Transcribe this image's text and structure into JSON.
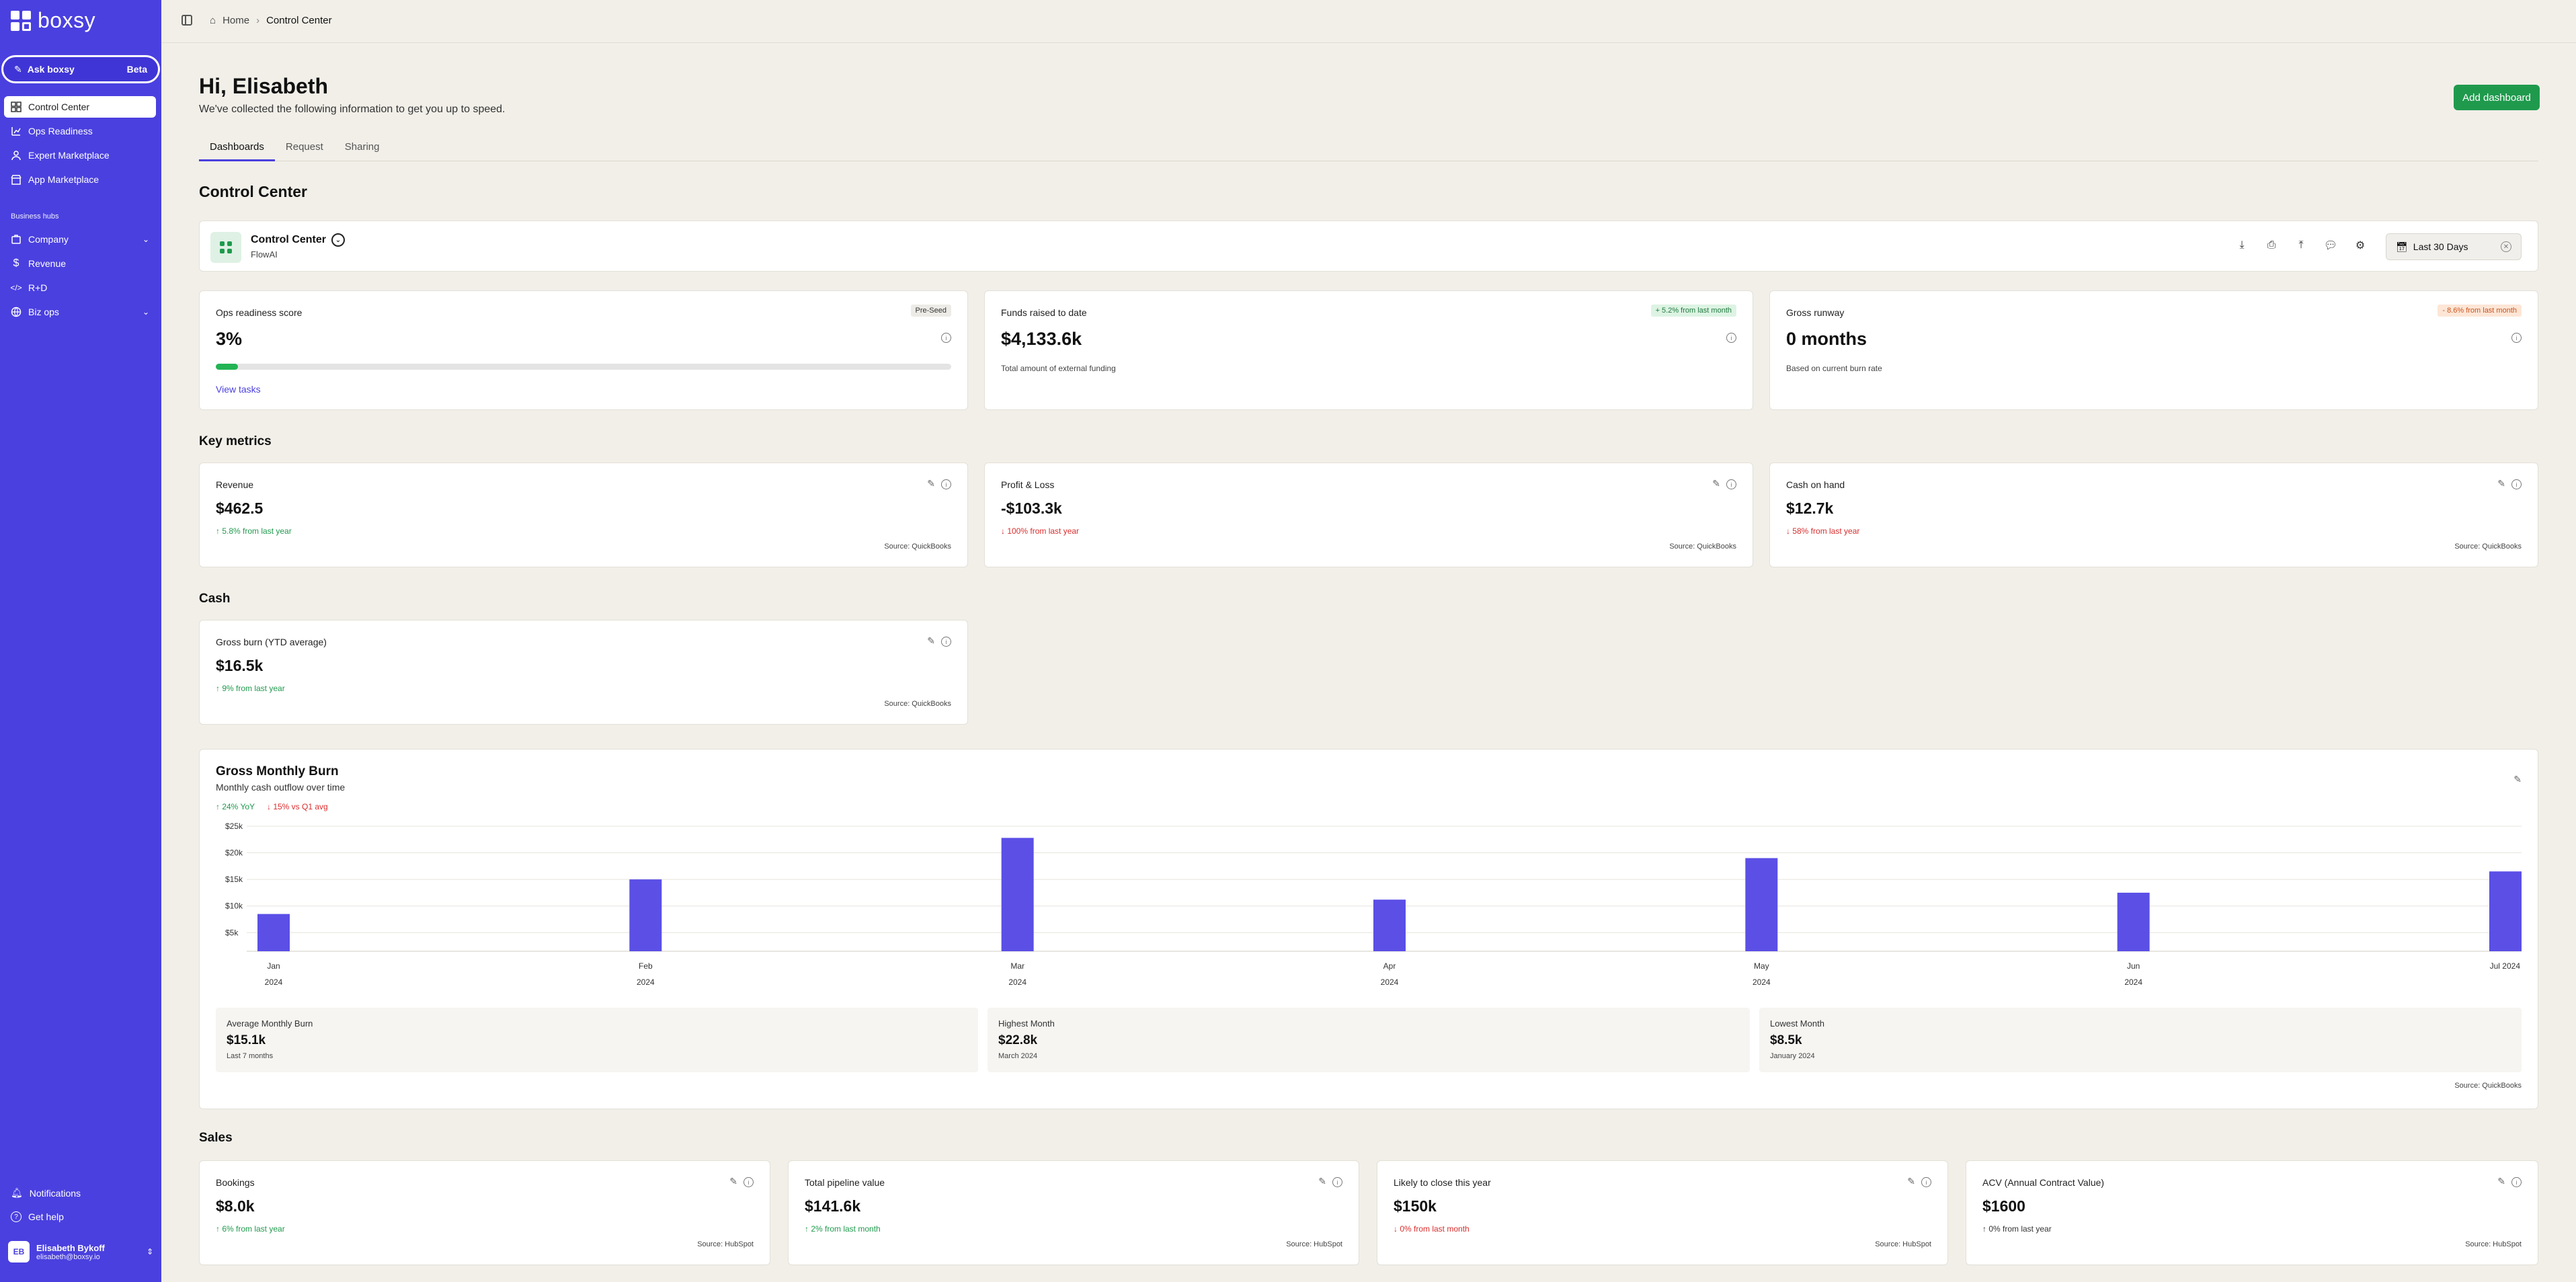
{
  "app": {
    "name": "boxsy"
  },
  "colors": {
    "brand": "#4a40df",
    "accent_green": "#1f9a4d",
    "bar": "#5b4fe6",
    "down": "#d92d2d"
  },
  "sidebar": {
    "ask": {
      "label": "Ask boxsy",
      "badge": "Beta"
    },
    "items": [
      {
        "label": "Control Center",
        "icon": "dashboard-icon",
        "active": true
      },
      {
        "label": "Ops Readiness",
        "icon": "chart-icon"
      },
      {
        "label": "Expert Marketplace",
        "icon": "person-icon"
      },
      {
        "label": "App Marketplace",
        "icon": "store-icon"
      }
    ],
    "section_label": "Business hubs",
    "hubs": [
      {
        "label": "Company",
        "icon": "building-icon",
        "expandable": true
      },
      {
        "label": "Revenue",
        "icon": "dollar-icon"
      },
      {
        "label": "R+D",
        "icon": "code-icon"
      },
      {
        "label": "Biz ops",
        "icon": "globe-icon",
        "expandable": true
      }
    ],
    "notifications": "Notifications",
    "help": "Get help",
    "user": {
      "initials": "EB",
      "name": "Elisabeth Bykoff",
      "email": "elisabeth@boxsy.io"
    }
  },
  "breadcrumb": {
    "home": "Home",
    "current": "Control Center"
  },
  "header": {
    "greeting": "Hi, Elisabeth",
    "subtitle": "We've collected the following information to get you up to speed.",
    "add_button": "Add dashboard"
  },
  "tabs": [
    "Dashboards",
    "Request",
    "Sharing"
  ],
  "section_titles": {
    "control_center": "Control Center",
    "key_metrics": "Key metrics",
    "cash": "Cash",
    "sales": "Sales"
  },
  "control_card": {
    "title": "Control Center",
    "subtitle": "FlowAI",
    "date_range": "Last 30 Days"
  },
  "summary": [
    {
      "title": "Ops readiness score",
      "value": "3%",
      "badge": "Pre-Seed",
      "progress": 0.03,
      "link": "View tasks"
    },
    {
      "title": "Funds raised to date",
      "value": "$4,133.6k",
      "badge": "+ 5.2% from last month",
      "note": "Total amount of external funding"
    },
    {
      "title": "Gross runway",
      "value": "0 months",
      "badge": "- 8.6% from last month",
      "note": "Based on current burn rate"
    }
  ],
  "key_metrics": [
    {
      "title": "Revenue",
      "value": "$462.5",
      "change": "↑ 5.8% from last year",
      "direction": "up",
      "source": "Source: QuickBooks"
    },
    {
      "title": "Profit & Loss",
      "value": "-$103.3k",
      "change": "↓ 100% from last year",
      "direction": "down",
      "source": "Source: QuickBooks"
    },
    {
      "title": "Cash on hand",
      "value": "$12.7k",
      "change": "↓ 58% from last year",
      "direction": "down",
      "source": "Source: QuickBooks"
    }
  ],
  "cash_metric": {
    "title": "Gross burn (YTD average)",
    "value": "$16.5k",
    "change": "↑ 9% from last year",
    "direction": "up",
    "source": "Source: QuickBooks"
  },
  "chart_card": {
    "title": "Gross Monthly Burn",
    "subtitle": "Monthly cash outflow over time",
    "tag_up": "↑ 24% YoY",
    "tag_down": "↓ 15% vs Q1 avg",
    "source": "Source: QuickBooks",
    "stats": [
      {
        "label": "Average Monthly Burn",
        "value": "$15.1k",
        "sub": "Last 7 months"
      },
      {
        "label": "Highest Month",
        "value": "$22.8k",
        "sub": "March 2024"
      },
      {
        "label": "Lowest Month",
        "value": "$8.5k",
        "sub": "January 2024"
      }
    ]
  },
  "chart_data": {
    "type": "bar",
    "categories": [
      "Jan",
      "Feb",
      "Mar",
      "Apr",
      "May",
      "Jun",
      "Jul 2024"
    ],
    "category_sublabels": [
      "2024",
      "2024",
      "2024",
      "2024",
      "2024",
      "2024",
      ""
    ],
    "values": [
      8.5,
      15.0,
      22.8,
      11.2,
      19.0,
      12.5,
      16.5
    ],
    "value_unit": "thousand USD",
    "yticks": [
      "$5k",
      "$10k",
      "$15k",
      "$20k",
      "$25k"
    ],
    "ytick_values": [
      5,
      10,
      15,
      20,
      25
    ],
    "ylim": [
      1.5,
      25.5
    ],
    "grid": true
  },
  "sales": [
    {
      "title": "Bookings",
      "value": "$8.0k",
      "change": "↑ 6% from last year",
      "direction": "up",
      "source": "Source: HubSpot"
    },
    {
      "title": "Total pipeline value",
      "value": "$141.6k",
      "change": "↑ 2% from last month",
      "direction": "up",
      "source": "Source: HubSpot"
    },
    {
      "title": "Likely to close this year",
      "value": "$150k",
      "change": "↓ 0% from last month",
      "direction": "down",
      "source": "Source: HubSpot"
    },
    {
      "title": "ACV (Annual Contract Value)",
      "value": "$1600",
      "change": "↑ 0% from last year",
      "direction": "neutral",
      "source": "Source: HubSpot"
    }
  ]
}
